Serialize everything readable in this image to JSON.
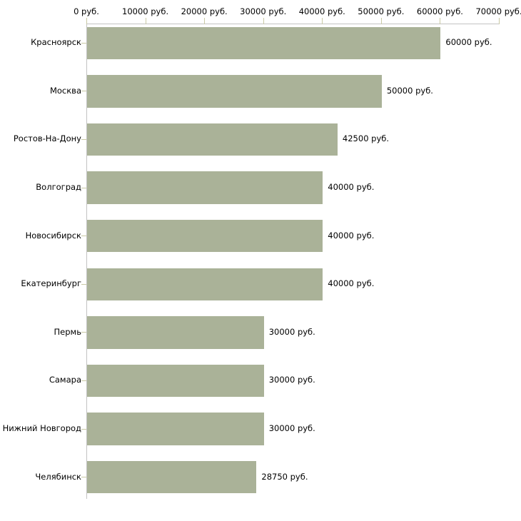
{
  "chart_data": {
    "type": "bar",
    "orientation": "horizontal",
    "title": "",
    "categories": [
      "Красноярск",
      "Москва",
      "Ростов-На-Дону",
      "Волгоград",
      "Новосибирск",
      "Екатеринбург",
      "Пермь",
      "Самара",
      "Нижний Новгород",
      "Челябинск"
    ],
    "values": [
      60000,
      50000,
      42500,
      40000,
      40000,
      40000,
      30000,
      30000,
      30000,
      28750
    ],
    "value_labels": [
      "60000 руб.",
      "50000 руб.",
      "42500 руб.",
      "40000 руб.",
      "40000 руб.",
      "40000 руб.",
      "30000 руб.",
      "30000 руб.",
      "30000 руб.",
      "28750 руб."
    ],
    "x_axis": {
      "position": "top",
      "min": 0,
      "max": 70000,
      "ticks": [
        0,
        10000,
        20000,
        30000,
        40000,
        50000,
        60000,
        70000
      ],
      "tick_labels": [
        "0 руб.",
        "10000 руб.",
        "20000 руб.",
        "30000 руб.",
        "40000 руб.",
        "50000 руб.",
        "60000 руб.",
        "70000 руб."
      ]
    },
    "ylabel": "",
    "xlabel": "",
    "grid": false,
    "legend": false,
    "colors": {
      "bar": "#aab298",
      "axis_line": "#c3c3c3",
      "tick": "#c9c9a5",
      "text": "#000000",
      "background": "#ffffff"
    }
  }
}
